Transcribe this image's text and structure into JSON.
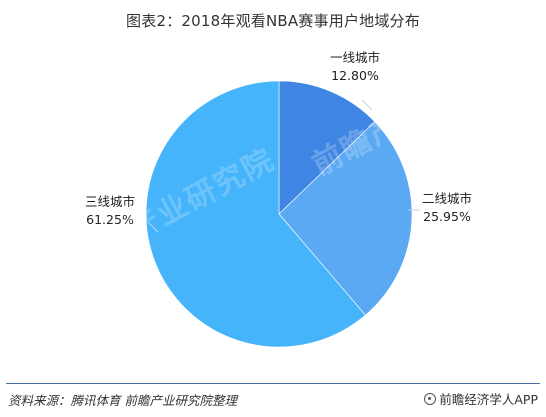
{
  "title": "图表2：2018年观看NBA赛事用户地域分布",
  "chart_data": {
    "type": "pie",
    "title": "图表2：2018年观看NBA赛事用户地域分布",
    "slices": [
      {
        "label": "一线城市",
        "value": 12.8,
        "value_text": "12.80%",
        "color": "#3f86e4"
      },
      {
        "label": "二线城市",
        "value": 25.95,
        "value_text": "25.95%",
        "color": "#5aa9f2"
      },
      {
        "label": "三线城市",
        "value": 61.25,
        "value_text": "61.25%",
        "color": "#45b4fb"
      }
    ],
    "start": "top",
    "direction": "clockwise"
  },
  "footer": {
    "source": "资料来源：腾讯体育  前瞻产业研究院整理",
    "brand": "前瞻经济学人APP"
  },
  "watermark": "前瞻产业研究院"
}
